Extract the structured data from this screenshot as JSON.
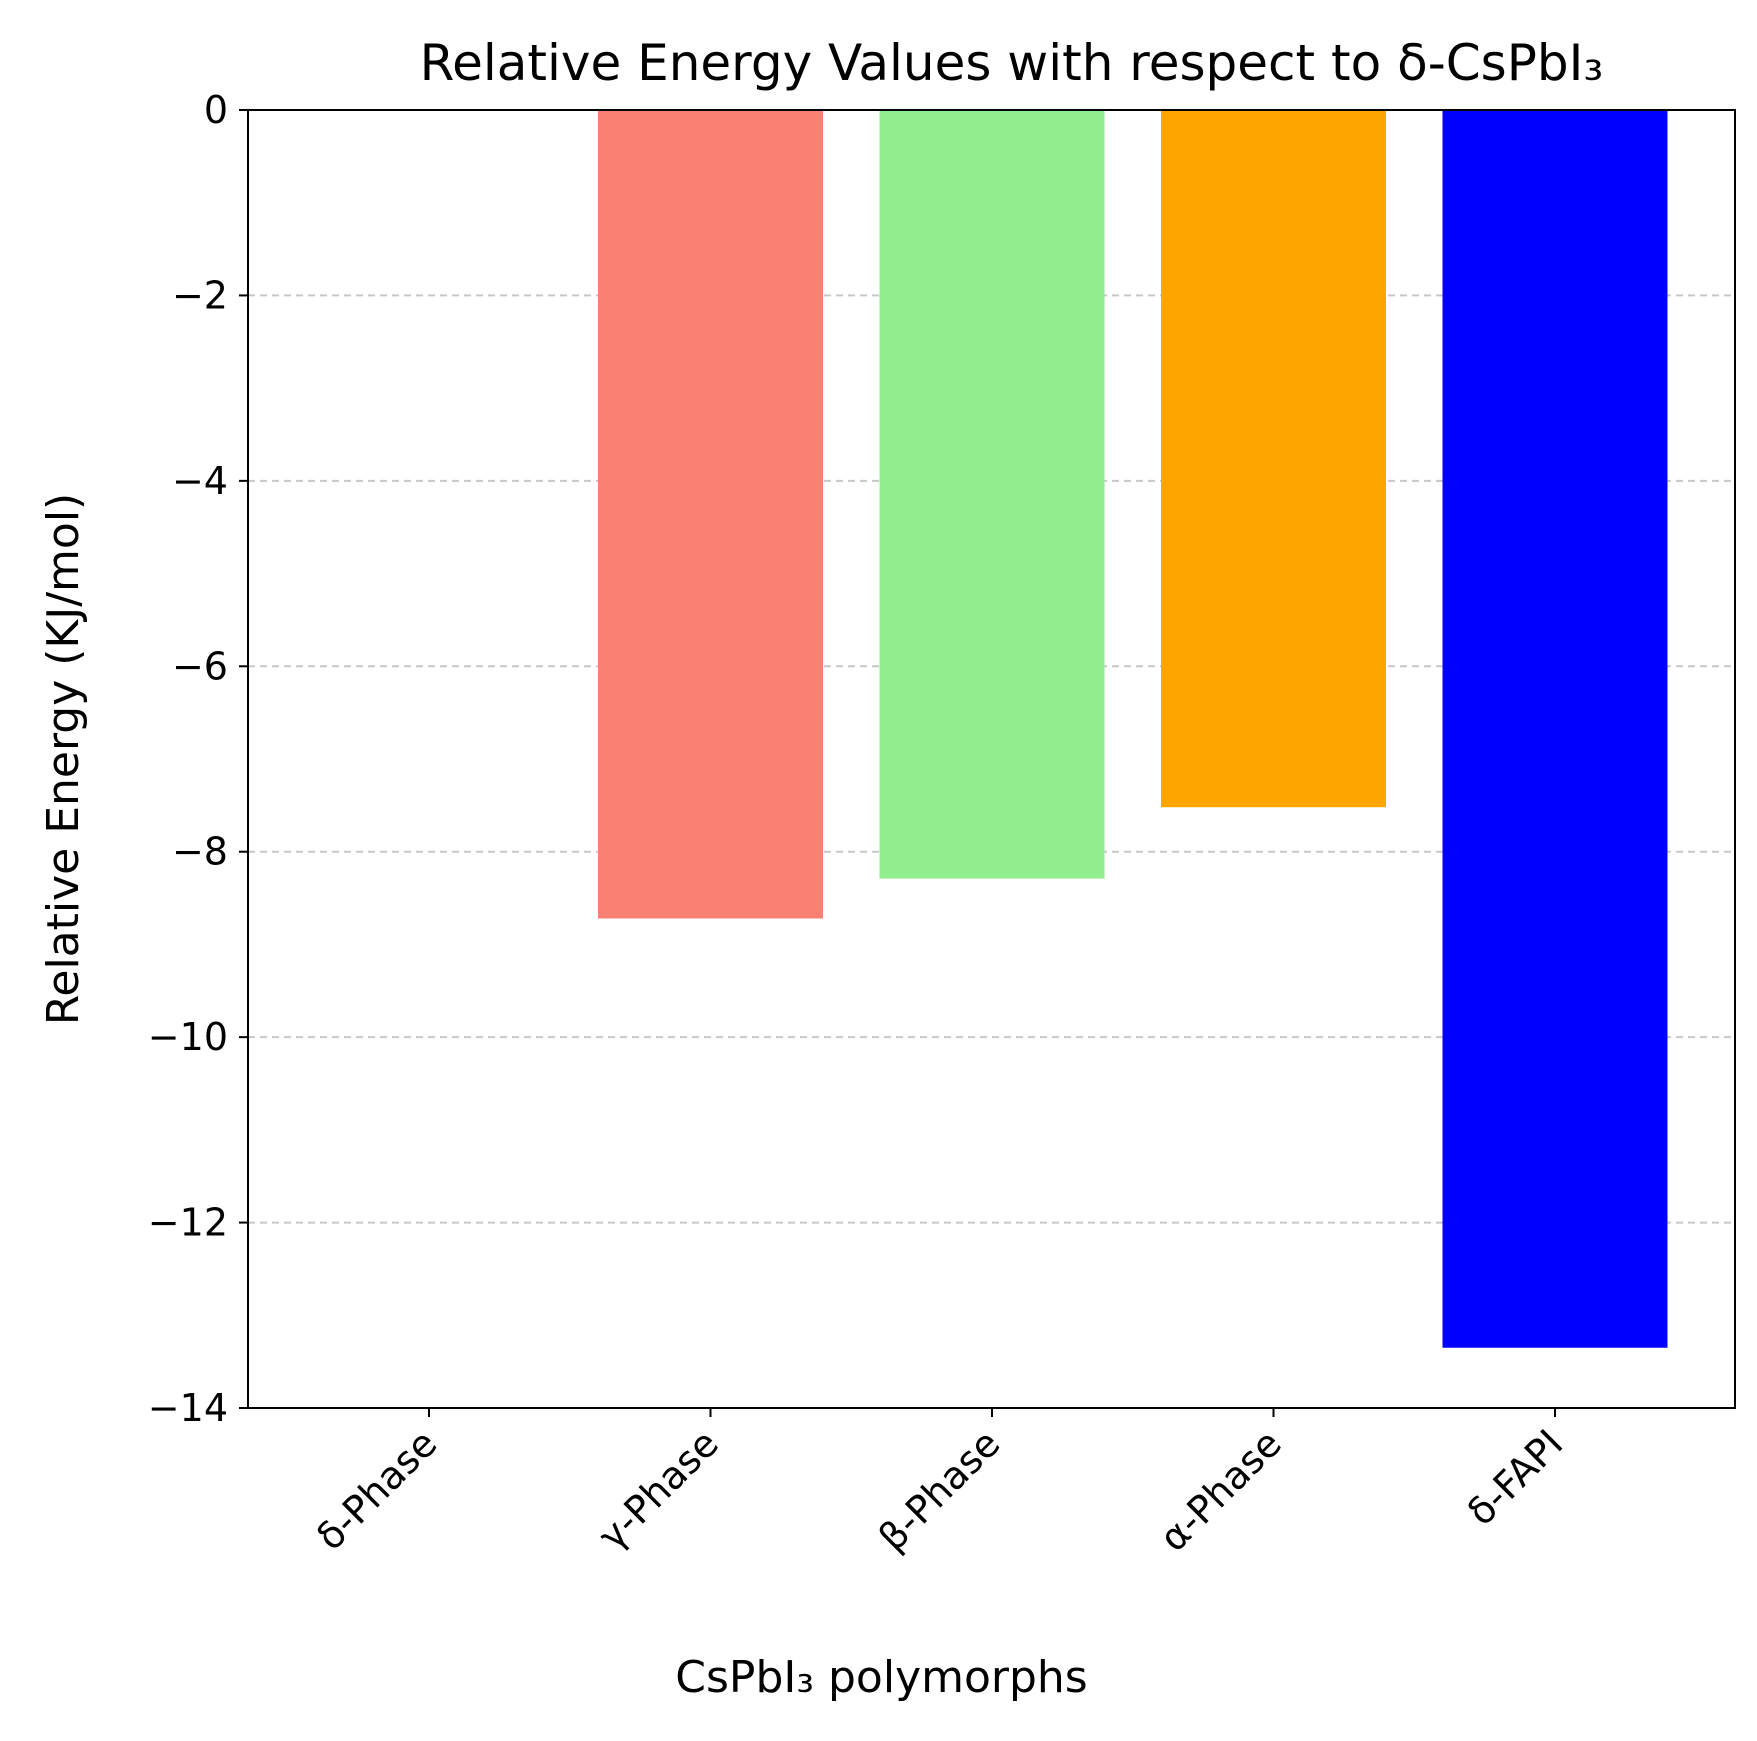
{
  "chart_data": {
    "type": "bar",
    "title": "Relative Energy Values with respect to δ-CsPbI₃",
    "xlabel": "CsPbI₃ polymorphs",
    "ylabel": "Relative Energy (KJ/mol)",
    "categories": [
      "δ-Phase",
      "γ-Phase",
      "β-Phase",
      "α-Phase",
      "δ-FAPI"
    ],
    "values": [
      0,
      -8.72,
      -8.29,
      -7.52,
      -13.35
    ],
    "colors": [
      "#ffffff",
      "#fa8072",
      "#90ee90",
      "#ffa500",
      "#0000ff"
    ],
    "ylim": [
      -14,
      0
    ],
    "yticks": [
      0,
      -2,
      -4,
      -6,
      -8,
      -10,
      -12,
      -14
    ],
    "ytick_labels": [
      "0",
      "−2",
      "−4",
      "−6",
      "−8",
      "−10",
      "−12",
      "−14"
    ],
    "grid": "y dashed"
  }
}
